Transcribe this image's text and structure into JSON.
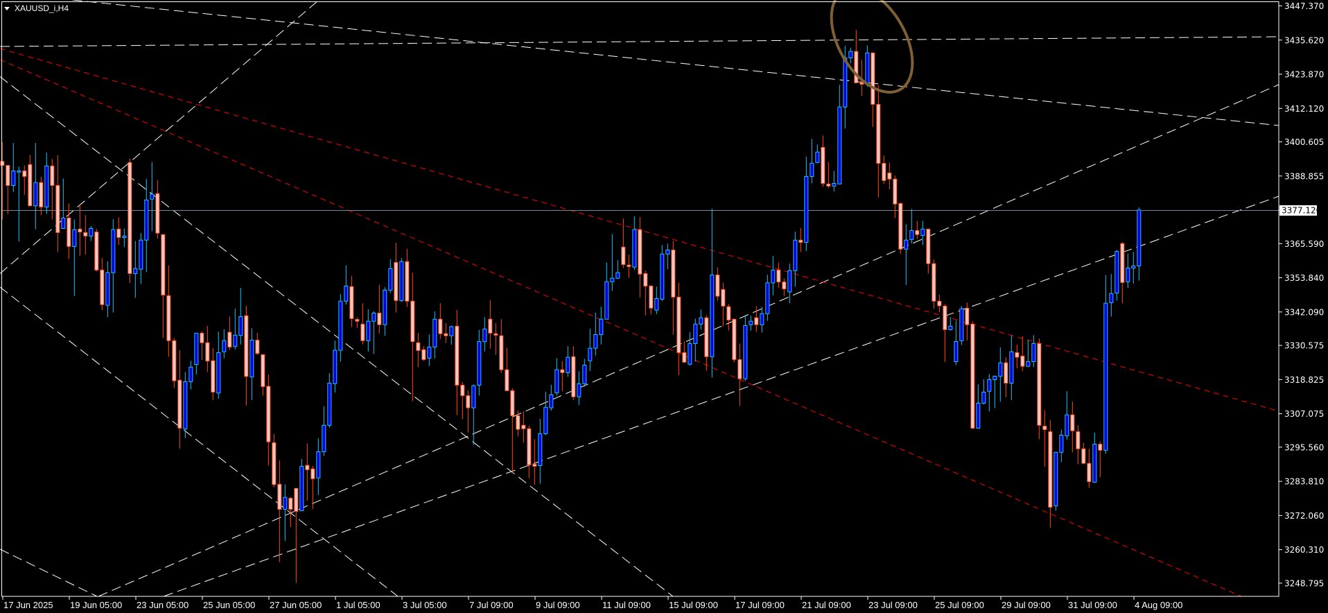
{
  "header": {
    "symbol_label": "XAUUSD_i,H4",
    "menu_icon": "triangle-down-icon"
  },
  "colors": {
    "background": "#000000",
    "frame": "#ffffff",
    "bull_body": "#0000dd",
    "bull_outline": "#1ec0ff",
    "bear_body": "#ffc8c8",
    "bear_outline": "#ff4e1a",
    "bid_line": "#778899",
    "trendline_white": "#ffffff",
    "trendline_red": "#ff0000",
    "ellipse": "#7f5f35"
  },
  "chart_data": {
    "type": "candlestick",
    "title": "XAUUSD_i,H4",
    "ylim": [
      3244.25,
      3448.92
    ],
    "current_price": "3377.120",
    "y_tick_labels": [
      "3447.370",
      "3435.620",
      "3423.870",
      "3412.120",
      "3400.605",
      "3388.855",
      "3377.120",
      "3365.590",
      "3353.840",
      "3342.090",
      "3330.575",
      "3318.825",
      "3307.075",
      "3295.560",
      "3283.810",
      "3272.060",
      "3260.310",
      "3248.795"
    ],
    "x_tick_labels": [
      {
        "label": "17 Jun 2025",
        "candle": 0
      },
      {
        "label": "19 Jun 05:00",
        "candle": 12
      },
      {
        "label": "23 Jun 05:00",
        "candle": 24
      },
      {
        "label": "25 Jun 05:00",
        "candle": 36
      },
      {
        "label": "27 Jun 05:00",
        "candle": 48
      },
      {
        "label": "1 Jul 05:00",
        "candle": 60
      },
      {
        "label": "3 Jul 05:00",
        "candle": 72
      },
      {
        "label": "7 Jul 09:00",
        "candle": 84
      },
      {
        "label": "9 Jul 09:00",
        "candle": 96
      },
      {
        "label": "11 Jul 09:00",
        "candle": 108
      },
      {
        "label": "15 Jul 09:00",
        "candle": 120
      },
      {
        "label": "17 Jul 09:00",
        "candle": 132
      },
      {
        "label": "21 Jul 09:00",
        "candle": 144
      },
      {
        "label": "23 Jul 09:00",
        "candle": 156
      },
      {
        "label": "25 Jul 09:00",
        "candle": 168
      },
      {
        "label": "29 Jul 09:00",
        "candle": 180
      },
      {
        "label": "31 Jul 09:00",
        "candle": 192
      },
      {
        "label": "4 Aug 09:00",
        "candle": 204
      }
    ],
    "ohlc_fields": [
      "open",
      "high",
      "low",
      "close"
    ],
    "candles": [
      [
        3393.9,
        3400.5,
        3373.9,
        3392.5
      ],
      [
        3392.5,
        3392.5,
        3375.8,
        3385.6
      ],
      [
        3385.6,
        3400.2,
        3383.4,
        3390.6
      ],
      [
        3390.2,
        3392.1,
        3366.3,
        3390.6
      ],
      [
        3390.6,
        3392.5,
        3382.4,
        3388.7
      ],
      [
        3392.8,
        3396.1,
        3378.6,
        3378.6
      ],
      [
        3378.6,
        3400.2,
        3370.5,
        3386.6
      ],
      [
        3386.6,
        3388.6,
        3375.4,
        3378.2
      ],
      [
        3378.2,
        3396.9,
        3375.8,
        3392.3
      ],
      [
        3392.3,
        3394.7,
        3373.9,
        3385.6
      ],
      [
        3385.6,
        3396.0,
        3362.7,
        3369.4
      ],
      [
        3370.8,
        3388.0,
        3370.7,
        3374.4
      ],
      [
        3374.4,
        3379.4,
        3360.3,
        3364.6
      ],
      [
        3364.6,
        3373.9,
        3347.6,
        3370.4
      ],
      [
        3370.6,
        3379.2,
        3361.4,
        3369.6
      ],
      [
        3369.4,
        3375.4,
        3361.8,
        3368.2
      ],
      [
        3368.2,
        3371.6,
        3366.5,
        3370.8
      ],
      [
        3369.6,
        3370.7,
        3356.0,
        3356.5
      ],
      [
        3356.5,
        3360.7,
        3342.7,
        3344.6
      ],
      [
        3344.4,
        3359.5,
        3340.3,
        3355.6
      ],
      [
        3355.6,
        3374.0,
        3341.9,
        3370.4
      ],
      [
        3370.6,
        3374.6,
        3365.1,
        3367.7
      ],
      [
        3367.7,
        3370.8,
        3364.5,
        3368.2
      ],
      [
        3393.5,
        3394.9,
        3352.0,
        3355.3
      ],
      [
        3355.3,
        3366.5,
        3347.0,
        3357.0
      ],
      [
        3356.8,
        3369.2,
        3351.7,
        3366.8
      ],
      [
        3366.8,
        3387.8,
        3355.8,
        3380.6
      ],
      [
        3380.9,
        3393.6,
        3369.9,
        3382.6
      ],
      [
        3382.8,
        3387.5,
        3367.3,
        3369.2
      ],
      [
        3368.7,
        3368.7,
        3333.1,
        3347.9
      ],
      [
        3347.7,
        3358.1,
        3326.7,
        3332.2
      ],
      [
        3332.2,
        3333.1,
        3316.0,
        3318.4
      ],
      [
        3318.6,
        3328.9,
        3295.1,
        3302.1
      ],
      [
        3301.9,
        3321.4,
        3298.7,
        3318.1
      ],
      [
        3318.1,
        3325.3,
        3315.4,
        3323.1
      ],
      [
        3324.0,
        3334.8,
        3320.6,
        3334.8
      ],
      [
        3334.8,
        3335.4,
        3325.6,
        3331.5
      ],
      [
        3331.5,
        3337.3,
        3321.4,
        3325.2
      ],
      [
        3325.3,
        3329.6,
        3311.8,
        3314.5
      ],
      [
        3314.2,
        3335.3,
        3312.2,
        3328.1
      ],
      [
        3328.4,
        3336.1,
        3326.2,
        3332.2
      ],
      [
        3335.1,
        3340.5,
        3328.9,
        3330.0
      ],
      [
        3330.2,
        3343.2,
        3329.2,
        3334.1
      ],
      [
        3334.0,
        3350.4,
        3330.9,
        3340.5
      ],
      [
        3340.8,
        3344.2,
        3309.9,
        3319.9
      ],
      [
        3319.7,
        3336.5,
        3311.8,
        3332.4
      ],
      [
        3332.4,
        3334.9,
        3327.3,
        3327.8
      ],
      [
        3327.4,
        3327.4,
        3313.3,
        3316.4
      ],
      [
        3316.5,
        3320.6,
        3289.2,
        3297.4
      ],
      [
        3297.1,
        3300.1,
        3281.8,
        3282.7
      ],
      [
        3282.8,
        3291.0,
        3256.0,
        3274.2
      ],
      [
        3274.2,
        3282.8,
        3263.3,
        3278.3
      ],
      [
        3278.0,
        3278.4,
        3268.1,
        3274.2
      ],
      [
        3281.4,
        3281.4,
        3248.9,
        3273.5
      ],
      [
        3273.7,
        3291.5,
        3273.7,
        3289.0
      ],
      [
        3289.3,
        3296.9,
        3277.2,
        3287.8
      ],
      [
        3288.1,
        3289.1,
        3274.3,
        3284.7
      ],
      [
        3285.0,
        3298.6,
        3279.1,
        3294.0
      ],
      [
        3294.0,
        3309.6,
        3292.5,
        3303.1
      ],
      [
        3303.1,
        3321.0,
        3302.3,
        3317.6
      ],
      [
        3317.4,
        3332.2,
        3314.4,
        3328.9
      ],
      [
        3328.9,
        3348.3,
        3325.0,
        3345.8
      ],
      [
        3345.8,
        3358.1,
        3344.6,
        3351.0
      ],
      [
        3350.8,
        3354.5,
        3336.9,
        3339.8
      ],
      [
        3339.5,
        3340.3,
        3336.6,
        3338.9
      ],
      [
        3337.9,
        3345.1,
        3330.9,
        3332.2
      ],
      [
        3332.2,
        3343.0,
        3328.5,
        3338.9
      ],
      [
        3338.9,
        3342.3,
        3327.6,
        3341.7
      ],
      [
        3341.7,
        3351.4,
        3334.7,
        3337.7
      ],
      [
        3337.7,
        3350.6,
        3333.9,
        3349.6
      ],
      [
        3349.6,
        3360.2,
        3348.6,
        3357.0
      ],
      [
        3359.1,
        3365.9,
        3341.9,
        3346.0
      ],
      [
        3346.0,
        3360.6,
        3345.5,
        3359.4
      ],
      [
        3359.4,
        3363.8,
        3343.8,
        3345.8
      ],
      [
        3345.8,
        3355.6,
        3311.4,
        3331.9
      ],
      [
        3331.5,
        3334.9,
        3323.1,
        3328.8
      ],
      [
        3329.1,
        3330.3,
        3325.2,
        3325.7
      ],
      [
        3326.2,
        3334.3,
        3323.5,
        3330.0
      ],
      [
        3330.0,
        3342.3,
        3326.1,
        3339.6
      ],
      [
        3339.6,
        3345.1,
        3332.8,
        3334.6
      ],
      [
        3334.6,
        3338.2,
        3331.4,
        3333.9
      ],
      [
        3333.9,
        3337.4,
        3330.8,
        3337.0
      ],
      [
        3337.2,
        3342.8,
        3306.6,
        3316.9
      ],
      [
        3316.9,
        3318.0,
        3305.2,
        3313.3
      ],
      [
        3313.3,
        3315.2,
        3300.6,
        3309.1
      ],
      [
        3309.1,
        3317.2,
        3296.3,
        3316.7
      ],
      [
        3316.9,
        3335.9,
        3313.3,
        3331.9
      ],
      [
        3331.9,
        3340.3,
        3328.5,
        3336.2
      ],
      [
        3339.6,
        3346.1,
        3329.5,
        3334.8
      ],
      [
        3334.6,
        3338.2,
        3327.3,
        3334.1
      ],
      [
        3333.9,
        3339.6,
        3321.1,
        3322.2
      ],
      [
        3322.2,
        3329.8,
        3314.8,
        3315.0
      ],
      [
        3315.0,
        3315.8,
        3286.8,
        3306.4
      ],
      [
        3306.4,
        3308.2,
        3299.3,
        3301.7
      ],
      [
        3303.1,
        3307.9,
        3297.1,
        3301.9
      ],
      [
        3301.9,
        3302.9,
        3284.9,
        3289.5
      ],
      [
        3289.7,
        3298.3,
        3282.6,
        3289.0
      ],
      [
        3289.2,
        3305.3,
        3283.0,
        3300.2
      ],
      [
        3300.2,
        3314.6,
        3299.7,
        3309.3
      ],
      [
        3309.1,
        3317.0,
        3308.1,
        3313.6
      ],
      [
        3314.3,
        3326.2,
        3313.3,
        3322.2
      ],
      [
        3322.2,
        3325.1,
        3314.8,
        3321.2
      ],
      [
        3321.2,
        3330.3,
        3319.8,
        3326.5
      ],
      [
        3326.7,
        3330.3,
        3311.8,
        3312.9
      ],
      [
        3312.9,
        3321.7,
        3310.0,
        3317.4
      ],
      [
        3317.4,
        3326.0,
        3316.4,
        3323.8
      ],
      [
        3325.3,
        3336.3,
        3321.8,
        3329.6
      ],
      [
        3329.6,
        3341.8,
        3327.1,
        3334.3
      ],
      [
        3334.3,
        3343.9,
        3330.9,
        3339.6
      ],
      [
        3339.6,
        3359.1,
        3339.6,
        3352.5
      ],
      [
        3352.5,
        3368.8,
        3349.3,
        3353.7
      ],
      [
        3353.7,
        3359.9,
        3353.4,
        3355.6
      ],
      [
        3364.4,
        3374.2,
        3357.2,
        3358.4
      ],
      [
        3358.2,
        3361.8,
        3353.8,
        3357.7
      ],
      [
        3357.5,
        3375.0,
        3356.5,
        3370.4
      ],
      [
        3370.4,
        3374.7,
        3347.1,
        3355.1
      ],
      [
        3355.3,
        3356.3,
        3340.9,
        3351.0
      ],
      [
        3351.0,
        3351.3,
        3341.3,
        3343.4
      ],
      [
        3342.7,
        3350.8,
        3341.3,
        3346.7
      ],
      [
        3346.5,
        3365.1,
        3345.8,
        3362.0
      ],
      [
        3362.0,
        3365.6,
        3356.8,
        3363.4
      ],
      [
        3363.4,
        3366.5,
        3334.3,
        3347.2
      ],
      [
        3347.2,
        3352.2,
        3320.3,
        3328.1
      ],
      [
        3328.1,
        3332.0,
        3324.5,
        3324.8
      ],
      [
        3324.1,
        3335.1,
        3323.6,
        3331.2
      ],
      [
        3331.2,
        3339.8,
        3325.0,
        3337.9
      ],
      [
        3337.9,
        3342.9,
        3336.0,
        3340.1
      ],
      [
        3340.1,
        3341.0,
        3321.9,
        3326.7
      ],
      [
        3326.7,
        3377.6,
        3319.5,
        3354.8
      ],
      [
        3354.8,
        3357.5,
        3346.0,
        3347.5
      ],
      [
        3349.8,
        3352.2,
        3337.2,
        3344.1
      ],
      [
        3343.9,
        3344.8,
        3335.7,
        3339.3
      ],
      [
        3339.6,
        3339.8,
        3324.8,
        3325.7
      ],
      [
        3325.7,
        3331.2,
        3309.8,
        3319.1
      ],
      [
        3319.1,
        3341.0,
        3318.3,
        3337.4
      ],
      [
        3337.7,
        3340.8,
        3335.7,
        3338.9
      ],
      [
        3340.1,
        3344.1,
        3335.2,
        3337.7
      ],
      [
        3337.7,
        3343.8,
        3335.0,
        3341.5
      ],
      [
        3341.5,
        3354.9,
        3339.0,
        3352.1
      ],
      [
        3352.1,
        3361.3,
        3347.8,
        3356.5
      ],
      [
        3356.5,
        3359.1,
        3350.4,
        3352.4
      ],
      [
        3352.4,
        3353.6,
        3347.6,
        3350.0
      ],
      [
        3349.0,
        3358.7,
        3345.1,
        3356.3
      ],
      [
        3356.3,
        3369.7,
        3350.8,
        3366.8
      ],
      [
        3366.8,
        3370.9,
        3362.7,
        3366.0
      ],
      [
        3366.0,
        3395.5,
        3363.0,
        3388.7
      ],
      [
        3388.7,
        3401.6,
        3386.3,
        3393.2
      ],
      [
        3393.5,
        3399.7,
        3393.2,
        3397.1
      ],
      [
        3398.7,
        3402.8,
        3385.1,
        3386.3
      ],
      [
        3386.1,
        3393.7,
        3384.7,
        3385.4
      ],
      [
        3385.4,
        3390.6,
        3383.5,
        3386.3
      ],
      [
        3386.1,
        3420.2,
        3386.1,
        3412.6
      ],
      [
        3412.6,
        3433.6,
        3405.2,
        3429.5
      ],
      [
        3429.5,
        3432.9,
        3427.6,
        3431.7
      ],
      [
        3431.7,
        3439.1,
        3420.9,
        3420.9
      ],
      [
        3420.9,
        3428.8,
        3416.4,
        3420.4
      ],
      [
        3420.4,
        3433.8,
        3419.5,
        3431.2
      ],
      [
        3431.2,
        3431.4,
        3405.7,
        3413.5
      ],
      [
        3413.5,
        3420.0,
        3381.5,
        3393.2
      ],
      [
        3393.2,
        3395.9,
        3386.1,
        3387.3
      ],
      [
        3389.9,
        3393.5,
        3384.2,
        3387.8
      ],
      [
        3387.8,
        3389.0,
        3374.4,
        3379.2
      ],
      [
        3379.4,
        3379.7,
        3362.0,
        3363.7
      ],
      [
        3363.7,
        3372.3,
        3351.4,
        3366.8
      ],
      [
        3367.0,
        3377.5,
        3365.6,
        3370.1
      ],
      [
        3370.1,
        3373.4,
        3367.2,
        3368.7
      ],
      [
        3368.4,
        3373.4,
        3365.1,
        3370.6
      ],
      [
        3370.6,
        3370.6,
        3355.3,
        3358.7
      ],
      [
        3358.7,
        3360.1,
        3343.2,
        3345.8
      ],
      [
        3345.8,
        3348.0,
        3342.0,
        3344.2
      ],
      [
        3344.1,
        3344.8,
        3324.9,
        3336.0
      ],
      [
        3336.0,
        3340.3,
        3335.7,
        3337.2
      ],
      [
        3325.0,
        3339.1,
        3323.8,
        3331.9
      ],
      [
        3332.2,
        3344.1,
        3330.7,
        3343.2
      ],
      [
        3343.4,
        3345.3,
        3332.3,
        3337.7
      ],
      [
        3337.9,
        3338.9,
        3301.7,
        3302.1
      ],
      [
        3302.1,
        3317.2,
        3301.9,
        3310.7
      ],
      [
        3310.7,
        3318.9,
        3310.2,
        3314.5
      ],
      [
        3314.8,
        3320.7,
        3307.9,
        3318.8
      ],
      [
        3318.8,
        3320.2,
        3309.0,
        3320.0
      ],
      [
        3320.0,
        3329.9,
        3311.2,
        3324.6
      ],
      [
        3324.6,
        3326.5,
        3312.8,
        3317.6
      ],
      [
        3317.6,
        3334.1,
        3311.8,
        3328.4
      ],
      [
        3328.1,
        3330.8,
        3322.7,
        3326.5
      ],
      [
        3326.9,
        3333.6,
        3321.7,
        3323.4
      ],
      [
        3323.4,
        3332.4,
        3323.1,
        3325.0
      ],
      [
        3325.0,
        3334.1,
        3323.1,
        3331.2
      ],
      [
        3331.2,
        3332.9,
        3298.3,
        3303.1
      ],
      [
        3302.8,
        3308.3,
        3288.8,
        3301.6
      ],
      [
        3300.9,
        3304.8,
        3267.9,
        3274.9
      ],
      [
        3275.4,
        3294.0,
        3273.7,
        3293.8
      ],
      [
        3293.8,
        3301.6,
        3290.4,
        3299.7
      ],
      [
        3299.5,
        3314.8,
        3298.1,
        3306.7
      ],
      [
        3306.7,
        3311.2,
        3293.8,
        3301.2
      ],
      [
        3300.9,
        3303.1,
        3289.7,
        3295.0
      ],
      [
        3295.0,
        3297.1,
        3289.7,
        3290.0
      ],
      [
        3290.0,
        3295.0,
        3281.6,
        3283.7
      ],
      [
        3283.5,
        3300.5,
        3283.3,
        3296.6
      ],
      [
        3296.6,
        3297.4,
        3285.2,
        3294.5
      ],
      [
        3294.5,
        3354.8,
        3293.3,
        3345.1
      ],
      [
        3345.3,
        3355.1,
        3340.5,
        3348.4
      ],
      [
        3348.6,
        3363.4,
        3346.0,
        3362.9
      ],
      [
        3365.6,
        3366.1,
        3345.1,
        3352.2
      ],
      [
        3352.5,
        3362.2,
        3350.3,
        3357.2
      ],
      [
        3357.2,
        3362.7,
        3351.8,
        3357.9
      ],
      [
        3357.9,
        3378.0,
        3352.9,
        3377.12
      ]
    ],
    "grid": false,
    "annotations": {
      "trendlines_white": 7,
      "trendlines_red": 2,
      "ellipse": 1
    }
  }
}
